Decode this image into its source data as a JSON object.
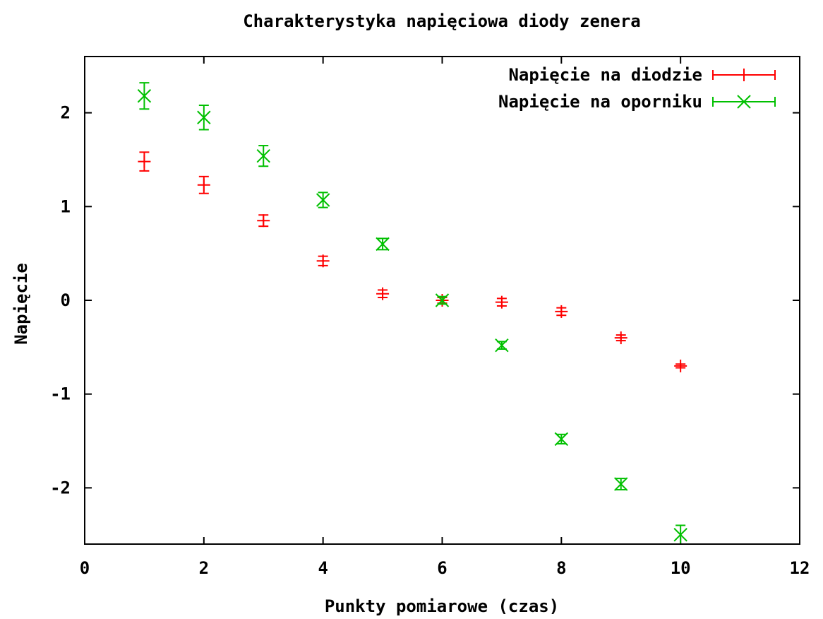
{
  "chart_data": {
    "type": "scatter",
    "title": "Charakterystyka napięciowa diody zenera",
    "xlabel": "Punkty pomiarowe (czas)",
    "ylabel": "Napięcie",
    "xlim": [
      0,
      12
    ],
    "ylim": [
      -2.6,
      2.6
    ],
    "xticks": [
      "0",
      "2",
      "4",
      "6",
      "8",
      "10",
      "12"
    ],
    "yticks": [
      "2",
      "1",
      "0",
      "-1",
      "-2"
    ],
    "xtick_values": [
      0,
      2,
      4,
      6,
      8,
      10,
      12
    ],
    "ytick_values": [
      2,
      1,
      0,
      -1,
      -2
    ],
    "grid": false,
    "legend_position": "top-right",
    "series": [
      {
        "name": "Napięcie na diodzie",
        "marker": "plus",
        "color": "#ff0000",
        "points": [
          {
            "x": 1,
            "y": 1.48,
            "err": 0.1
          },
          {
            "x": 2,
            "y": 1.23,
            "err": 0.09
          },
          {
            "x": 3,
            "y": 0.85,
            "err": 0.06
          },
          {
            "x": 4,
            "y": 0.42,
            "err": 0.05
          },
          {
            "x": 5,
            "y": 0.07,
            "err": 0.04
          },
          {
            "x": 6,
            "y": 0.0,
            "err": 0.03
          },
          {
            "x": 7,
            "y": -0.02,
            "err": 0.04
          },
          {
            "x": 8,
            "y": -0.12,
            "err": 0.04
          },
          {
            "x": 9,
            "y": -0.4,
            "err": 0.03
          },
          {
            "x": 10,
            "y": -0.7,
            "err": 0.02
          }
        ]
      },
      {
        "name": "Napięcie na oporniku",
        "marker": "cross",
        "color": "#00c000",
        "points": [
          {
            "x": 1,
            "y": 2.18,
            "err": 0.14
          },
          {
            "x": 2,
            "y": 1.95,
            "err": 0.13
          },
          {
            "x": 3,
            "y": 1.54,
            "err": 0.11
          },
          {
            "x": 4,
            "y": 1.07,
            "err": 0.08
          },
          {
            "x": 5,
            "y": 0.6,
            "err": 0.06
          },
          {
            "x": 6,
            "y": 0.0,
            "err": 0.04
          },
          {
            "x": 7,
            "y": -0.48,
            "err": 0.04
          },
          {
            "x": 8,
            "y": -1.48,
            "err": 0.05
          },
          {
            "x": 9,
            "y": -1.96,
            "err": 0.06
          },
          {
            "x": 10,
            "y": -2.5,
            "err": 0.1
          }
        ]
      }
    ]
  }
}
